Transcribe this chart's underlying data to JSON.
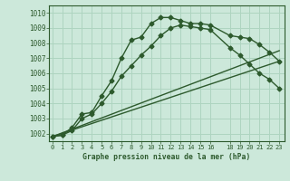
{
  "background_color": "#cce8da",
  "grid_color": "#aed4c0",
  "line_color": "#2d5a2d",
  "title": "Graphe pression niveau de la mer (hPa)",
  "xlim": [
    -0.3,
    23.5
  ],
  "ylim": [
    1001.5,
    1010.5
  ],
  "yticks": [
    1002,
    1003,
    1004,
    1005,
    1006,
    1007,
    1008,
    1009,
    1010
  ],
  "xticks": [
    0,
    1,
    2,
    3,
    4,
    5,
    6,
    7,
    8,
    9,
    10,
    11,
    12,
    13,
    14,
    15,
    16,
    18,
    19,
    20,
    21,
    22,
    23
  ],
  "xtick_labels": [
    "0",
    "1",
    "2",
    "3",
    "4",
    "5",
    "6",
    "7",
    "8",
    "9",
    "10",
    "11",
    "12",
    "13",
    "14",
    "15",
    "16",
    "18",
    "19",
    "20",
    "21",
    "22",
    "23"
  ],
  "line1_x": [
    0,
    1,
    2,
    3,
    4,
    5,
    6,
    7,
    8,
    9,
    10,
    11,
    12,
    13,
    14,
    15,
    16,
    18,
    19,
    20,
    21,
    22,
    23
  ],
  "line1_y": [
    1001.8,
    1001.9,
    1002.4,
    1003.3,
    1003.4,
    1004.5,
    1005.5,
    1007.0,
    1008.2,
    1008.4,
    1009.3,
    1009.7,
    1009.7,
    1009.5,
    1009.3,
    1009.3,
    1009.2,
    1008.5,
    1008.4,
    1008.3,
    1007.9,
    1007.4,
    1006.8
  ],
  "line2_x": [
    0,
    1,
    2,
    3,
    4,
    5,
    6,
    7,
    8,
    9,
    10,
    11,
    12,
    13,
    14,
    15,
    16,
    18,
    19,
    20,
    21,
    22,
    23
  ],
  "line2_y": [
    1001.8,
    1001.9,
    1002.2,
    1003.0,
    1003.3,
    1004.0,
    1004.8,
    1005.8,
    1006.5,
    1007.2,
    1007.8,
    1008.5,
    1009.0,
    1009.2,
    1009.1,
    1009.0,
    1008.9,
    1007.7,
    1007.2,
    1006.6,
    1006.0,
    1005.6,
    1005.0
  ],
  "line3_x": [
    0,
    23
  ],
  "line3_y": [
    1001.8,
    1006.8
  ],
  "line4_x": [
    0,
    23
  ],
  "line4_y": [
    1001.8,
    1007.5
  ],
  "markersize": 2.5,
  "linewidth": 1.0
}
